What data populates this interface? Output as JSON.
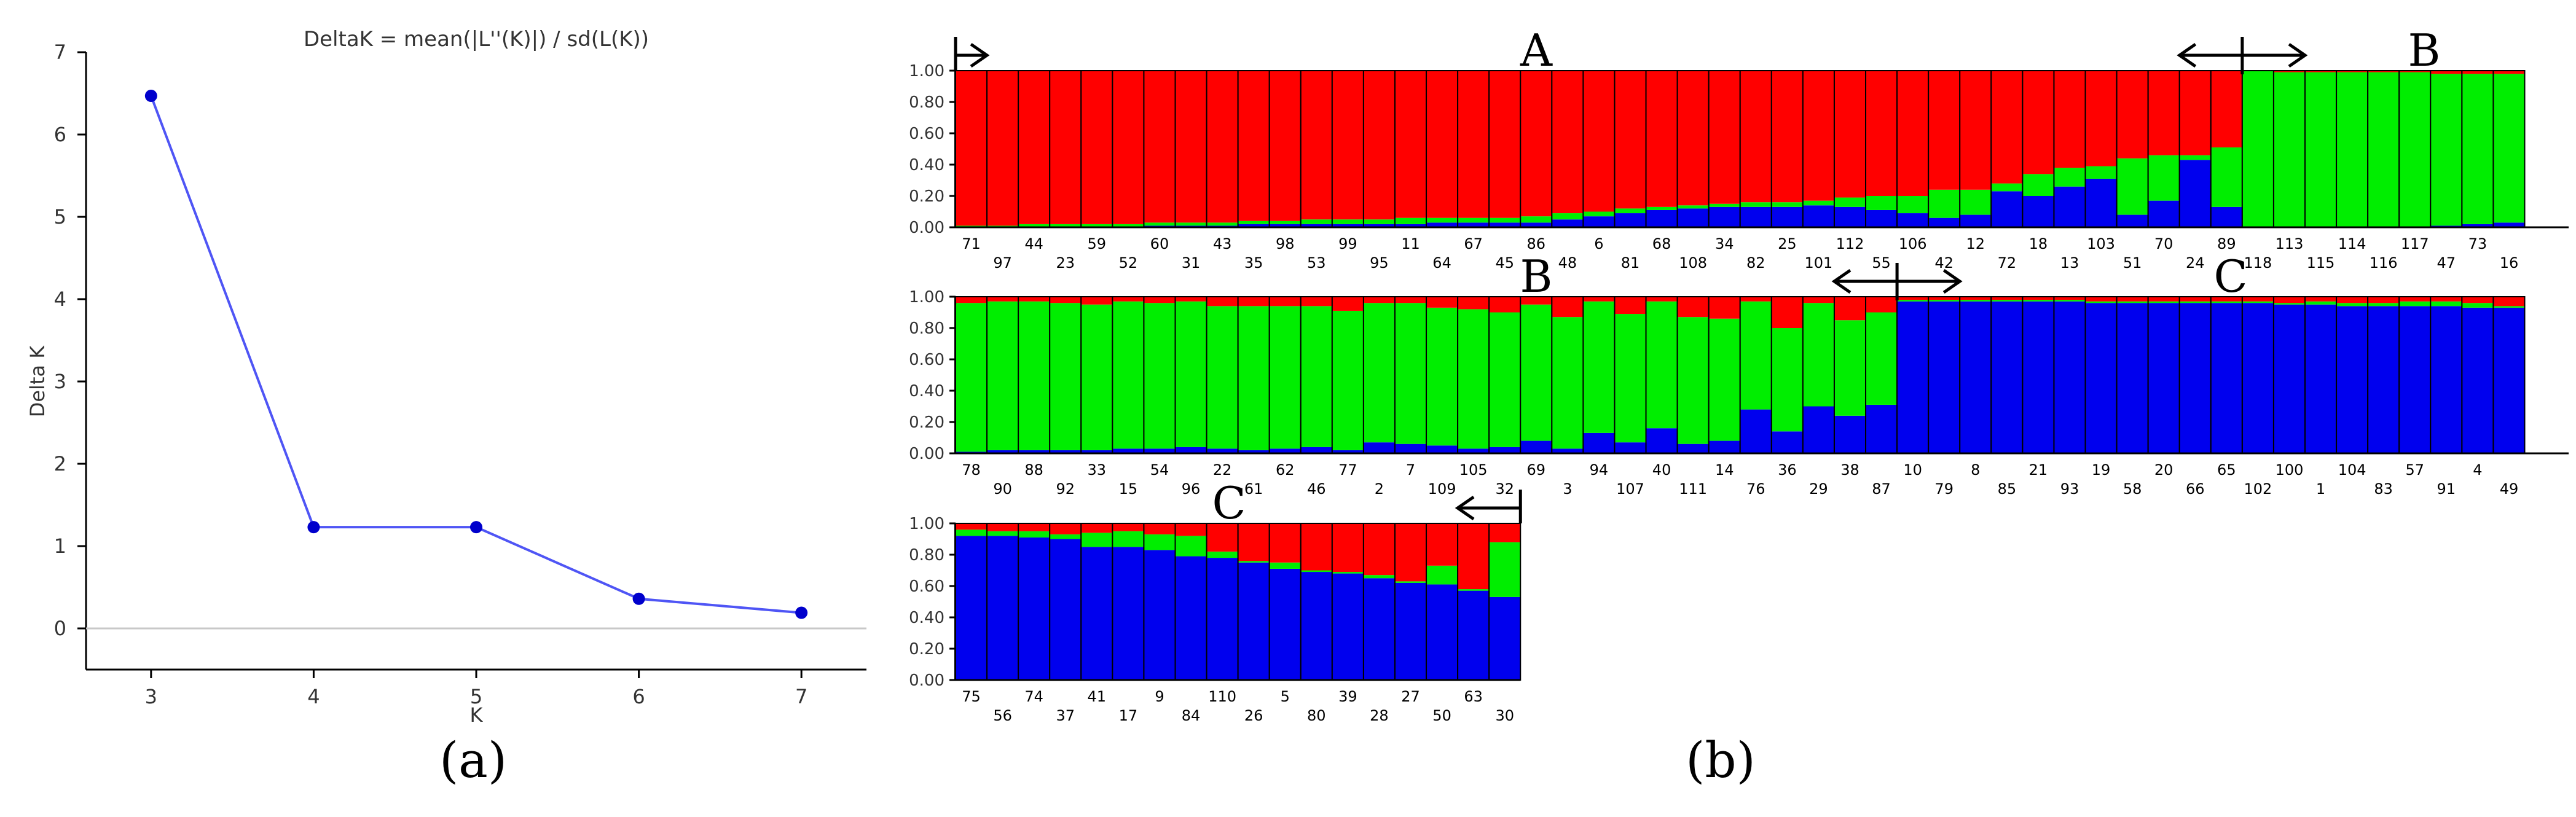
{
  "panel_labels": {
    "a": "(a)",
    "b": "(b)"
  },
  "colors": {
    "red": "#ff0000",
    "green": "#00ee00",
    "blue": "#0000ee",
    "line": "#4f55f5",
    "grid": "#c8c8c8"
  },
  "chart_data": [
    {
      "type": "line",
      "title": "DeltaK = mean(|L''(K)|) / sd(L(K))",
      "xlabel": "K",
      "ylabel": "Delta K",
      "x": [
        3,
        4,
        5,
        6,
        7
      ],
      "series": [
        {
          "values": [
            6.47,
            1.23,
            1.23,
            0.36,
            0.19
          ]
        }
      ],
      "xlim": [
        2.6,
        7.4
      ],
      "ylim": [
        -0.5,
        7.0
      ],
      "xticks": [
        "3",
        "4",
        "5",
        "6",
        "7"
      ],
      "yticks": [
        "0",
        "1",
        "2",
        "3",
        "4",
        "5",
        "6",
        "7"
      ],
      "reference_line": 0,
      "grid": false
    },
    {
      "type": "bar",
      "stacked": true,
      "ylim": [
        0,
        1
      ],
      "yticks": [
        "0.00",
        "0.20",
        "0.40",
        "0.60",
        "0.80",
        "1.00"
      ],
      "series_colors": [
        "blue",
        "green",
        "red"
      ],
      "rows": [
        {
          "labels": [
            "71",
            "97",
            "44",
            "23",
            "59",
            "52",
            "60",
            "31",
            "43",
            "35",
            "98",
            "53",
            "99",
            "95",
            "11",
            "64",
            "67",
            "45",
            "86",
            "48",
            "6",
            "81",
            "68",
            "108",
            "34",
            "82",
            "25",
            "101",
            "112",
            "55",
            "106",
            "42",
            "12",
            "72",
            "18",
            "13",
            "103",
            "51",
            "70",
            "24",
            "89",
            "118",
            "113",
            "115",
            "114",
            "116",
            "117",
            "47",
            "73",
            "16"
          ],
          "blue": [
            0.0,
            0.0,
            0.0,
            0.0,
            0.0,
            0.0,
            0.01,
            0.01,
            0.01,
            0.02,
            0.02,
            0.02,
            0.02,
            0.02,
            0.02,
            0.03,
            0.03,
            0.03,
            0.03,
            0.05,
            0.07,
            0.09,
            0.11,
            0.12,
            0.13,
            0.13,
            0.13,
            0.14,
            0.13,
            0.11,
            0.09,
            0.06,
            0.08,
            0.23,
            0.2,
            0.26,
            0.31,
            0.08,
            0.17,
            0.43,
            0.13,
            0.0,
            0.0,
            0.0,
            0.0,
            0.0,
            0.0,
            0.01,
            0.02,
            0.03
          ],
          "green": [
            0.01,
            0.01,
            0.02,
            0.02,
            0.02,
            0.02,
            0.02,
            0.02,
            0.02,
            0.02,
            0.02,
            0.03,
            0.03,
            0.03,
            0.04,
            0.03,
            0.03,
            0.03,
            0.04,
            0.04,
            0.03,
            0.03,
            0.02,
            0.02,
            0.02,
            0.03,
            0.03,
            0.03,
            0.06,
            0.09,
            0.11,
            0.18,
            0.16,
            0.05,
            0.14,
            0.12,
            0.08,
            0.36,
            0.29,
            0.03,
            0.38,
            1.0,
            0.99,
            0.99,
            0.99,
            0.99,
            0.99,
            0.97,
            0.96,
            0.95
          ],
          "red": [
            0.99,
            0.99,
            0.98,
            0.98,
            0.98,
            0.98,
            0.97,
            0.97,
            0.97,
            0.96,
            0.96,
            0.95,
            0.95,
            0.95,
            0.94,
            0.94,
            0.94,
            0.94,
            0.93,
            0.91,
            0.9,
            0.88,
            0.87,
            0.86,
            0.85,
            0.84,
            0.84,
            0.83,
            0.81,
            0.8,
            0.8,
            0.76,
            0.76,
            0.72,
            0.66,
            0.62,
            0.61,
            0.56,
            0.54,
            0.54,
            0.49,
            0.0,
            0.01,
            0.01,
            0.01,
            0.01,
            0.01,
            0.02,
            0.02,
            0.02
          ],
          "group_labels": [
            "A",
            "B"
          ],
          "arrows": [
            {
              "type": "right",
              "from_bar": 0,
              "to_bar": 1
            },
            {
              "type": "both",
              "from_bar": 39,
              "to_bar": 43,
              "divider_bar": 41
            }
          ]
        },
        {
          "labels": [
            "78",
            "90",
            "88",
            "92",
            "33",
            "15",
            "54",
            "96",
            "22",
            "61",
            "62",
            "46",
            "77",
            "2",
            "7",
            "109",
            "105",
            "32",
            "69",
            "3",
            "94",
            "107",
            "40",
            "111",
            "14",
            "76",
            "36",
            "29",
            "38",
            "87",
            "10",
            "79",
            "8",
            "85",
            "21",
            "93",
            "19",
            "58",
            "20",
            "66",
            "65",
            "102",
            "100",
            "1",
            "104",
            "83",
            "57",
            "91",
            "4",
            "49"
          ],
          "blue": [
            0.01,
            0.02,
            0.02,
            0.02,
            0.02,
            0.03,
            0.03,
            0.04,
            0.03,
            0.02,
            0.03,
            0.04,
            0.02,
            0.07,
            0.06,
            0.05,
            0.03,
            0.04,
            0.08,
            0.03,
            0.13,
            0.07,
            0.16,
            0.06,
            0.08,
            0.28,
            0.14,
            0.3,
            0.24,
            0.31,
            0.97,
            0.97,
            0.97,
            0.97,
            0.97,
            0.97,
            0.96,
            0.96,
            0.96,
            0.96,
            0.96,
            0.96,
            0.95,
            0.95,
            0.94,
            0.94,
            0.94,
            0.94,
            0.93,
            0.93
          ],
          "green": [
            0.95,
            0.95,
            0.95,
            0.94,
            0.93,
            0.94,
            0.93,
            0.93,
            0.91,
            0.92,
            0.91,
            0.9,
            0.89,
            0.89,
            0.9,
            0.88,
            0.89,
            0.86,
            0.87,
            0.84,
            0.84,
            0.82,
            0.81,
            0.81,
            0.78,
            0.69,
            0.66,
            0.66,
            0.61,
            0.59,
            0.01,
            0.01,
            0.01,
            0.01,
            0.01,
            0.01,
            0.01,
            0.01,
            0.01,
            0.01,
            0.01,
            0.01,
            0.01,
            0.02,
            0.02,
            0.02,
            0.03,
            0.03,
            0.03,
            0.01
          ],
          "red": [
            0.04,
            0.03,
            0.03,
            0.04,
            0.05,
            0.03,
            0.04,
            0.03,
            0.06,
            0.06,
            0.06,
            0.06,
            0.09,
            0.04,
            0.04,
            0.07,
            0.08,
            0.1,
            0.05,
            0.13,
            0.03,
            0.11,
            0.03,
            0.13,
            0.14,
            0.03,
            0.2,
            0.04,
            0.15,
            0.1,
            0.02,
            0.02,
            0.02,
            0.02,
            0.02,
            0.02,
            0.03,
            0.03,
            0.03,
            0.03,
            0.03,
            0.03,
            0.04,
            0.03,
            0.04,
            0.04,
            0.03,
            0.03,
            0.04,
            0.06
          ],
          "group_labels": [
            "B",
            "C"
          ],
          "arrows": [
            {
              "type": "both",
              "from_bar": 28,
              "to_bar": 32,
              "divider_bar": 30
            }
          ]
        },
        {
          "labels": [
            "75",
            "56",
            "74",
            "37",
            "41",
            "17",
            "9",
            "84",
            "110",
            "26",
            "5",
            "80",
            "39",
            "28",
            "27",
            "50",
            "63",
            "30"
          ],
          "blue": [
            0.92,
            0.92,
            0.91,
            0.9,
            0.85,
            0.85,
            0.83,
            0.79,
            0.78,
            0.75,
            0.71,
            0.69,
            0.68,
            0.65,
            0.62,
            0.61,
            0.57,
            0.53
          ],
          "green": [
            0.04,
            0.03,
            0.04,
            0.03,
            0.09,
            0.1,
            0.1,
            0.13,
            0.04,
            0.01,
            0.04,
            0.01,
            0.01,
            0.02,
            0.01,
            0.12,
            0.01,
            0.35
          ],
          "red": [
            0.04,
            0.05,
            0.05,
            0.07,
            0.06,
            0.05,
            0.07,
            0.08,
            0.18,
            0.24,
            0.25,
            0.3,
            0.31,
            0.33,
            0.37,
            0.27,
            0.42,
            0.12
          ],
          "group_labels": [
            "C"
          ],
          "arrows": [
            {
              "type": "left",
              "from_bar": 16,
              "to_bar": 18
            }
          ]
        }
      ]
    }
  ]
}
